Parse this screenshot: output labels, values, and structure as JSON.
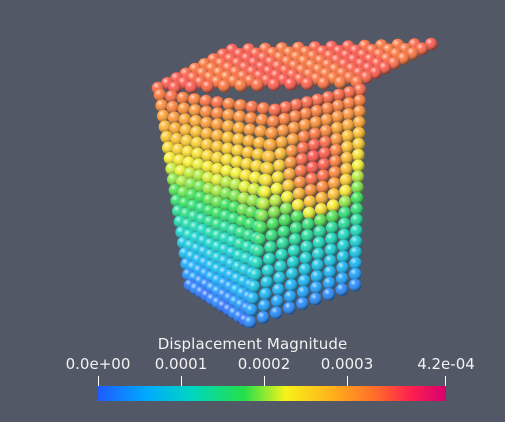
{
  "legend": {
    "title": "Displacement Magnitude",
    "ticks": [
      "0.0e+00",
      "0.0001",
      "0.0002",
      "0.0003",
      "4.2e-04"
    ],
    "tick_values": [
      0,
      0.0001,
      0.0002,
      0.0003,
      0.00042
    ],
    "range": [
      0,
      0.00042
    ]
  },
  "colors": {
    "background": "#525866",
    "colormap": [
      "#1e5bff",
      "#00a9ff",
      "#00d6c0",
      "#24e04a",
      "#f7f21a",
      "#ffb21a",
      "#ff6b2a",
      "#ff1f4f",
      "#d4006f"
    ]
  }
}
